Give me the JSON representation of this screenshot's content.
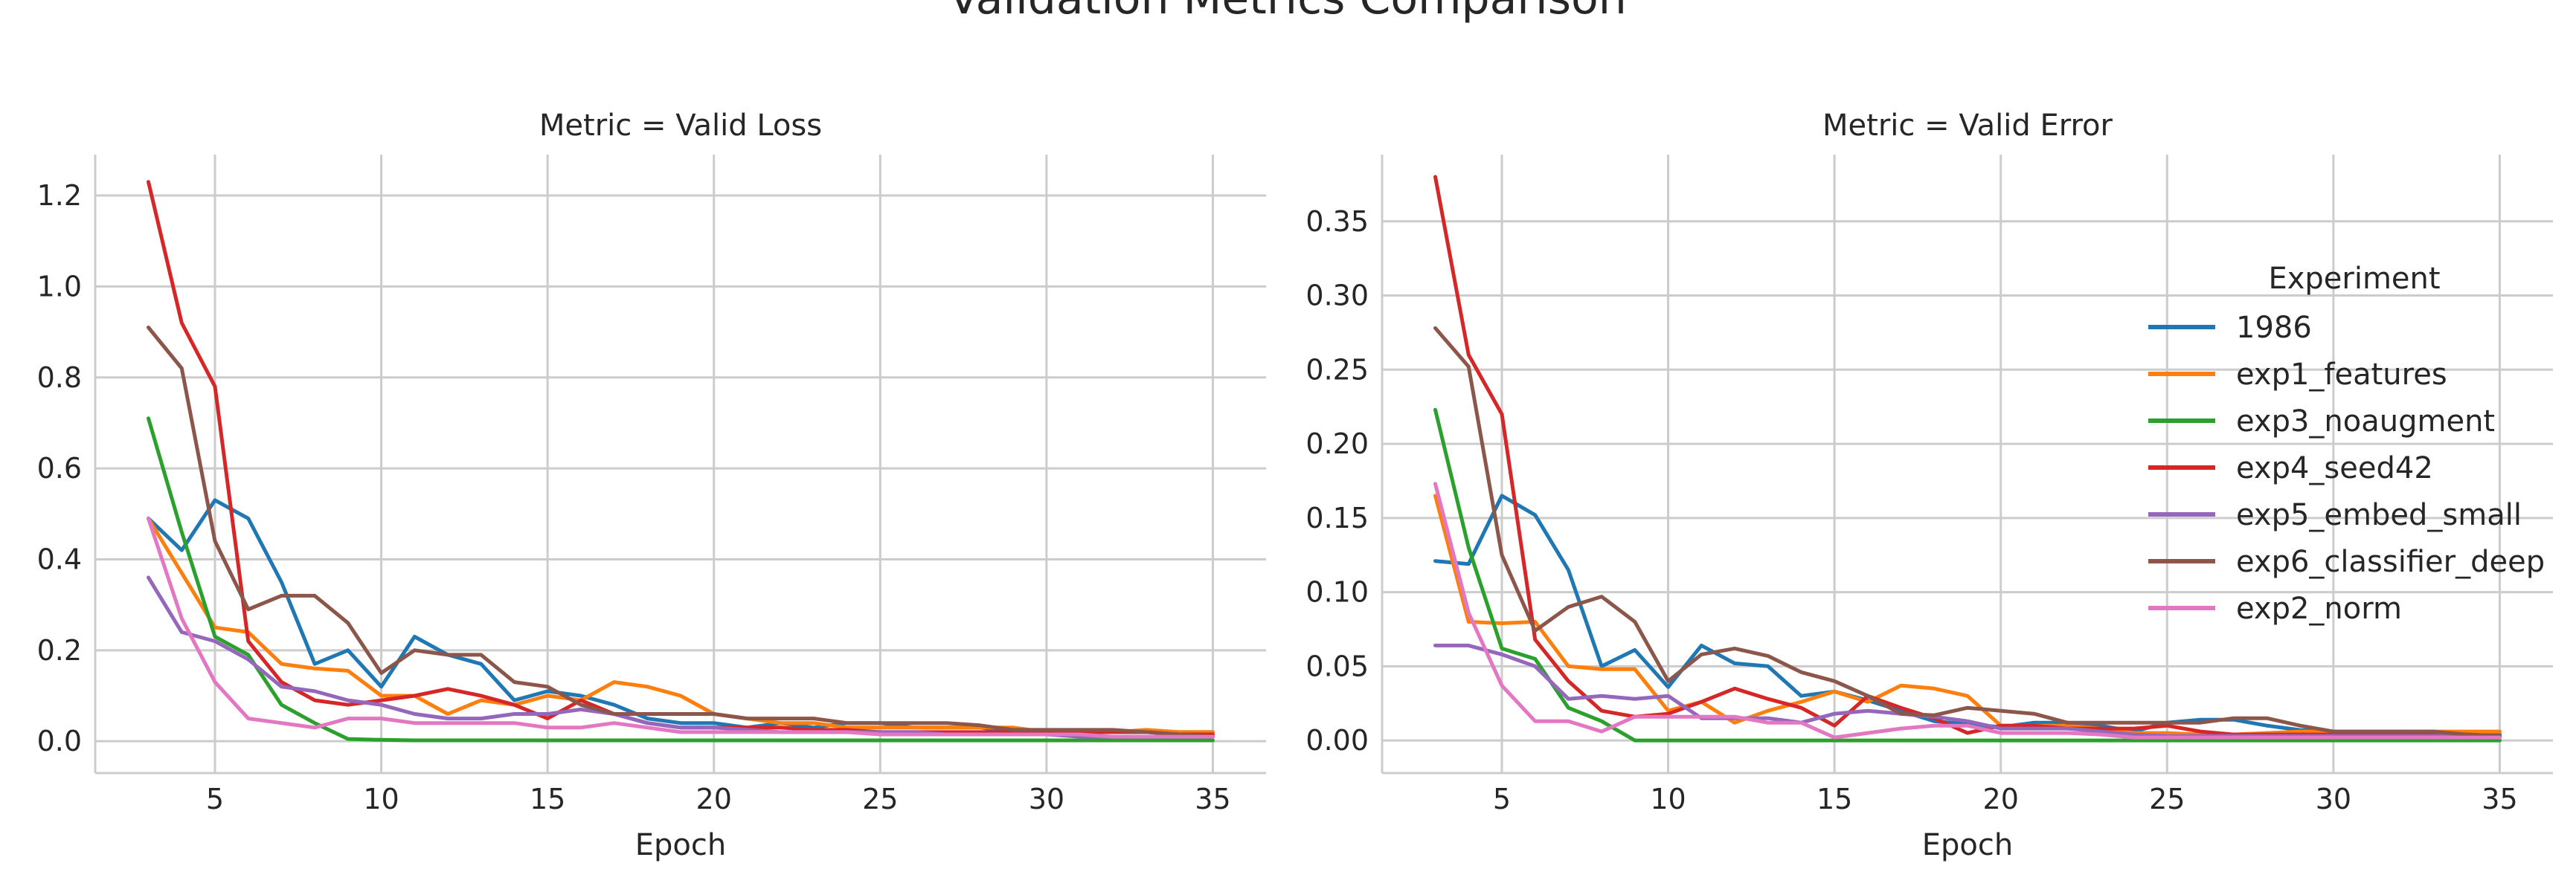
{
  "title": "Validation Metrics Comparison",
  "legend": {
    "title": "Experiment",
    "placement": "right"
  },
  "colors": {
    "1986": "#1f77b4",
    "exp1_features": "#ff7f0e",
    "exp3_noaugment": "#2ca02c",
    "exp4_seed42": "#d62728",
    "exp5_embed_small": "#9467bd",
    "exp6_classifier_deep": "#8c564b",
    "exp2_norm": "#e377c2"
  },
  "chart_data": [
    {
      "type": "line",
      "title": "Metric = Valid Loss",
      "xlabel": "Epoch",
      "ylabel": "",
      "xlim": [
        1.4,
        36.6
      ],
      "ylim": [
        -0.07,
        1.29
      ],
      "xticks": [
        5,
        10,
        15,
        20,
        25,
        30,
        35
      ],
      "yticks": [
        0.0,
        0.2,
        0.4,
        0.6,
        0.8,
        1.0,
        1.2
      ],
      "ytick_labels": [
        "0.0",
        "0.2",
        "0.4",
        "0.6",
        "0.8",
        "1.0",
        "1.2"
      ],
      "grid": true,
      "x": [
        3,
        4,
        5,
        6,
        7,
        8,
        9,
        10,
        11,
        12,
        13,
        14,
        15,
        16,
        17,
        18,
        19,
        20,
        21,
        22,
        23,
        24,
        25,
        26,
        27,
        28,
        29,
        30,
        31,
        32,
        33,
        34,
        35
      ],
      "series": [
        {
          "name": "1986",
          "values": [
            0.49,
            0.42,
            0.53,
            0.49,
            0.35,
            0.17,
            0.2,
            0.12,
            0.23,
            0.19,
            0.17,
            0.09,
            0.11,
            0.1,
            0.08,
            0.05,
            0.04,
            0.04,
            0.03,
            0.04,
            0.03,
            0.04,
            0.04,
            0.03,
            0.03,
            0.03,
            0.02,
            0.02,
            0.02,
            0.02,
            0.02,
            0.02,
            0.02
          ]
        },
        {
          "name": "exp1_features",
          "values": [
            0.49,
            0.37,
            0.25,
            0.24,
            0.17,
            0.16,
            0.155,
            0.1,
            0.1,
            0.06,
            0.09,
            0.08,
            0.1,
            0.09,
            0.13,
            0.12,
            0.1,
            0.06,
            0.05,
            0.04,
            0.04,
            0.03,
            0.03,
            0.03,
            0.03,
            0.03,
            0.03,
            0.02,
            0.02,
            0.02,
            0.025,
            0.02,
            0.02
          ]
        },
        {
          "name": "exp3_noaugment",
          "values": [
            0.71,
            0.46,
            0.23,
            0.19,
            0.08,
            0.04,
            0.005,
            0.003,
            0.002,
            0.002,
            0.002,
            0.002,
            0.002,
            0.002,
            0.002,
            0.002,
            0.002,
            0.002,
            0.002,
            0.002,
            0.002,
            0.002,
            0.002,
            0.002,
            0.002,
            0.002,
            0.002,
            0.002,
            0.002,
            0.002,
            0.002,
            0.002,
            0.002
          ]
        },
        {
          "name": "exp4_seed42",
          "values": [
            1.23,
            0.92,
            0.78,
            0.22,
            0.13,
            0.09,
            0.08,
            0.09,
            0.1,
            0.115,
            0.1,
            0.08,
            0.05,
            0.09,
            0.06,
            0.04,
            0.03,
            0.03,
            0.03,
            0.03,
            0.025,
            0.025,
            0.02,
            0.02,
            0.02,
            0.02,
            0.02,
            0.02,
            0.02,
            0.02,
            0.02,
            0.015,
            0.015
          ]
        },
        {
          "name": "exp5_embed_small",
          "values": [
            0.36,
            0.24,
            0.22,
            0.18,
            0.12,
            0.11,
            0.09,
            0.08,
            0.06,
            0.05,
            0.05,
            0.06,
            0.06,
            0.07,
            0.06,
            0.04,
            0.03,
            0.03,
            0.025,
            0.02,
            0.02,
            0.02,
            0.02,
            0.02,
            0.015,
            0.015,
            0.015,
            0.015,
            0.01,
            0.01,
            0.01,
            0.01,
            0.01
          ]
        },
        {
          "name": "exp6_classifier_deep",
          "values": [
            0.91,
            0.82,
            0.44,
            0.29,
            0.32,
            0.32,
            0.26,
            0.15,
            0.2,
            0.19,
            0.19,
            0.13,
            0.12,
            0.08,
            0.06,
            0.06,
            0.06,
            0.06,
            0.05,
            0.05,
            0.05,
            0.04,
            0.04,
            0.04,
            0.04,
            0.035,
            0.025,
            0.025,
            0.025,
            0.025,
            0.02,
            0.015,
            0.01
          ]
        },
        {
          "name": "exp2_norm",
          "values": [
            0.49,
            0.27,
            0.13,
            0.05,
            0.04,
            0.03,
            0.05,
            0.05,
            0.04,
            0.04,
            0.04,
            0.04,
            0.03,
            0.03,
            0.04,
            0.03,
            0.02,
            0.02,
            0.02,
            0.02,
            0.02,
            0.02,
            0.015,
            0.015,
            0.015,
            0.015,
            0.015,
            0.015,
            0.015,
            0.01,
            0.01,
            0.01,
            0.01
          ]
        }
      ]
    },
    {
      "type": "line",
      "title": "Metric = Valid Error",
      "xlabel": "Epoch",
      "ylabel": "",
      "xlim": [
        1.4,
        36.6
      ],
      "ylim": [
        -0.022,
        0.395
      ],
      "xticks": [
        5,
        10,
        15,
        20,
        25,
        30,
        35
      ],
      "yticks": [
        0.0,
        0.05,
        0.1,
        0.15,
        0.2,
        0.25,
        0.3,
        0.35
      ],
      "ytick_labels": [
        "0.00",
        "0.05",
        "0.10",
        "0.15",
        "0.20",
        "0.25",
        "0.30",
        "0.35"
      ],
      "grid": true,
      "x": [
        3,
        4,
        5,
        6,
        7,
        8,
        9,
        10,
        11,
        12,
        13,
        14,
        15,
        16,
        17,
        18,
        19,
        20,
        21,
        22,
        23,
        24,
        25,
        26,
        27,
        28,
        29,
        30,
        31,
        32,
        33,
        34,
        35
      ],
      "series": [
        {
          "name": "1986",
          "values": [
            0.121,
            0.119,
            0.165,
            0.152,
            0.115,
            0.05,
            0.061,
            0.036,
            0.064,
            0.052,
            0.05,
            0.03,
            0.033,
            0.027,
            0.02,
            0.013,
            0.011,
            0.009,
            0.012,
            0.012,
            0.01,
            0.006,
            0.012,
            0.014,
            0.014,
            0.01,
            0.007,
            0.006,
            0.006,
            0.006,
            0.005,
            0.004,
            0.004
          ]
        },
        {
          "name": "exp1_features",
          "values": [
            0.165,
            0.08,
            0.079,
            0.08,
            0.05,
            0.048,
            0.048,
            0.02,
            0.026,
            0.012,
            0.02,
            0.026,
            0.033,
            0.026,
            0.037,
            0.035,
            0.03,
            0.01,
            0.01,
            0.01,
            0.008,
            0.005,
            0.005,
            0.004,
            0.004,
            0.005,
            0.006,
            0.006,
            0.006,
            0.006,
            0.006,
            0.006,
            0.006
          ]
        },
        {
          "name": "exp3_noaugment",
          "values": [
            0.223,
            0.13,
            0.062,
            0.055,
            0.022,
            0.013,
            0.0,
            0.0,
            0.0,
            0.0,
            0.0,
            0.0,
            0.0,
            0.0,
            0.0,
            0.0,
            0.0,
            0.0,
            0.0,
            0.0,
            0.0,
            0.0,
            0.0,
            0.0,
            0.0,
            0.0,
            0.0,
            0.0,
            0.0,
            0.0,
            0.0,
            0.0,
            0.0
          ]
        },
        {
          "name": "exp4_seed42",
          "values": [
            0.38,
            0.26,
            0.22,
            0.068,
            0.04,
            0.02,
            0.016,
            0.018,
            0.026,
            0.035,
            0.028,
            0.022,
            0.01,
            0.03,
            0.022,
            0.015,
            0.005,
            0.01,
            0.01,
            0.008,
            0.008,
            0.008,
            0.01,
            0.006,
            0.004,
            0.004,
            0.004,
            0.004,
            0.004,
            0.004,
            0.004,
            0.004,
            0.003
          ]
        },
        {
          "name": "exp5_embed_small",
          "values": [
            0.064,
            0.064,
            0.058,
            0.05,
            0.028,
            0.03,
            0.028,
            0.03,
            0.015,
            0.015,
            0.015,
            0.012,
            0.018,
            0.02,
            0.018,
            0.016,
            0.013,
            0.008,
            0.008,
            0.008,
            0.006,
            0.004,
            0.003,
            0.003,
            0.003,
            0.003,
            0.003,
            0.003,
            0.003,
            0.003,
            0.003,
            0.003,
            0.003
          ]
        },
        {
          "name": "exp6_classifier_deep",
          "values": [
            0.278,
            0.252,
            0.125,
            0.074,
            0.09,
            0.097,
            0.08,
            0.04,
            0.058,
            0.062,
            0.057,
            0.046,
            0.04,
            0.03,
            0.018,
            0.017,
            0.022,
            0.02,
            0.018,
            0.012,
            0.012,
            0.012,
            0.012,
            0.012,
            0.015,
            0.015,
            0.01,
            0.006,
            0.006,
            0.006,
            0.006,
            0.004,
            0.003
          ]
        },
        {
          "name": "exp2_norm",
          "values": [
            0.173,
            0.086,
            0.037,
            0.013,
            0.013,
            0.006,
            0.016,
            0.016,
            0.016,
            0.016,
            0.012,
            0.012,
            0.002,
            0.005,
            0.008,
            0.01,
            0.01,
            0.005,
            0.005,
            0.005,
            0.004,
            0.002,
            0.002,
            0.002,
            0.002,
            0.002,
            0.002,
            0.002,
            0.002,
            0.002,
            0.002,
            0.002,
            0.002
          ]
        }
      ]
    }
  ]
}
